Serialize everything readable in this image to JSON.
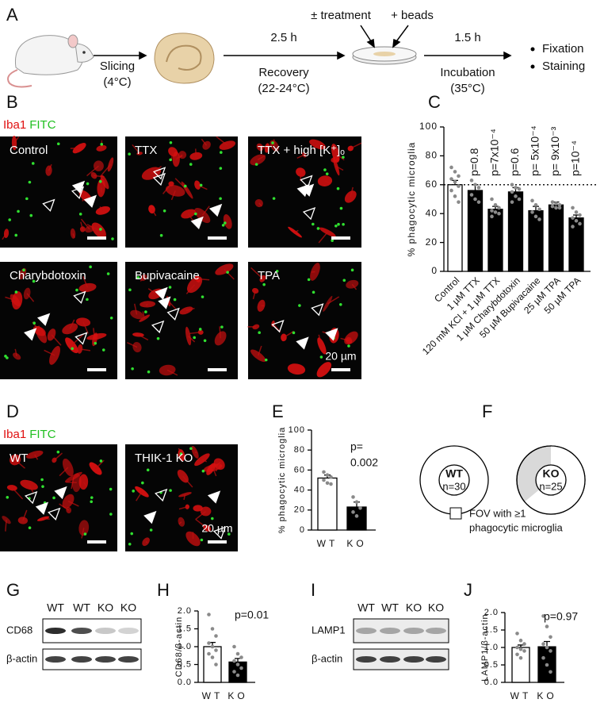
{
  "panel_a": {
    "label": "A",
    "slicing": [
      "Slicing",
      "(4°C)"
    ],
    "recovery_time": "2.5 h",
    "recovery": [
      "Recovery",
      "(22-24°C)"
    ],
    "treatment": "± treatment",
    "beads": "+ beads",
    "incubation_time": "1.5 h",
    "incubation": [
      "Incubation",
      "(35°C)"
    ],
    "endpoints": [
      "Fixation",
      "Staining"
    ]
  },
  "panel_b": {
    "label": "B",
    "stains": [
      "Iba1",
      "FITC"
    ],
    "images": [
      "Control",
      "TTX",
      "TTX + high [K⁺]ₒ",
      "Charybdotoxin",
      "Bupivacaine",
      "TPA"
    ],
    "scale_bar": "20 µm"
  },
  "panel_d": {
    "label": "D",
    "stains": [
      "Iba1",
      "FITC"
    ],
    "images": [
      "WT",
      "THIK-1 KO"
    ],
    "scale_bar": "20 µm"
  },
  "panel_g": {
    "label": "G",
    "lanes": [
      "WT",
      "WT",
      "KO",
      "KO"
    ],
    "rows": [
      "CD68",
      "β-actin"
    ]
  },
  "panel_i": {
    "label": "I",
    "lanes": [
      "WT",
      "WT",
      "KO",
      "KO"
    ],
    "rows": [
      "LAMP1",
      "β-actin"
    ]
  },
  "chart_data": [
    {
      "panel_label": "C",
      "type": "bar",
      "ylabel": "% phagocytic microglia",
      "categories": [
        "Control",
        "1 µM TTX",
        "120 mM KCl + 1 µM TTX",
        "1 µM Charybdotoxin",
        "50 µM Bupivacaine",
        "25 µM TPA",
        "50 µM TPA"
      ],
      "values": [
        60,
        56,
        43,
        55,
        42,
        46,
        37
      ],
      "errors": [
        3,
        4,
        2,
        3,
        3,
        2,
        2
      ],
      "points": [
        [
          72,
          69,
          66,
          64,
          62,
          59,
          56,
          52,
          48
        ],
        [
          63,
          60,
          58,
          53,
          50,
          48
        ],
        [
          50,
          46,
          44,
          42,
          41,
          40,
          38
        ],
        [
          60,
          58,
          57,
          55,
          52,
          50,
          48
        ],
        [
          49,
          46,
          43,
          41,
          38,
          36
        ],
        [
          48,
          47,
          46,
          45,
          44,
          44
        ],
        [
          44,
          41,
          39,
          37,
          35,
          33,
          31
        ]
      ],
      "colors": [
        "#ffffff",
        "#000000",
        "#000000",
        "#000000",
        "#000000",
        "#000000",
        "#000000"
      ],
      "point_color": "#8a8a8a",
      "p_labels": [
        null,
        "p=0.8",
        "p=7x10⁻⁴",
        "p=0.6",
        "p= 5x10⁻⁴",
        "p= 9x10⁻³",
        "p=10⁻⁴"
      ],
      "reference_line": 60,
      "ylim": [
        0,
        100
      ],
      "yticks": [
        0,
        20,
        40,
        60,
        80,
        100
      ]
    },
    {
      "panel_label": "E",
      "type": "bar",
      "ylabel": "% phagocytic microglia",
      "categories": [
        "WT",
        "KO"
      ],
      "values": [
        52,
        23
      ],
      "errors": [
        3,
        5
      ],
      "points": [
        [
          58,
          55,
          53,
          50,
          47,
          46
        ],
        [
          33,
          28,
          22,
          18,
          14
        ]
      ],
      "colors": [
        "#ffffff",
        "#000000"
      ],
      "point_color": "#8a8a8a",
      "p_text": [
        "p=",
        "0.002"
      ],
      "ylim": [
        0,
        100
      ],
      "yticks": [
        0,
        20,
        40,
        60,
        80,
        100
      ]
    },
    {
      "panel_label": "F",
      "type": "donut",
      "categories": [
        "WT",
        "KO"
      ],
      "n_labels": [
        "n=30",
        "n=25"
      ],
      "values": [
        100,
        64
      ],
      "color": "#ffffff",
      "other_color": "#d9d9d9",
      "legend_label": [
        "FOV with ≥1",
        "phagocytic microglia"
      ]
    },
    {
      "panel_label": "H",
      "type": "bar",
      "ylabel": "CD68/β-actin",
      "categories": [
        "WT",
        "KO"
      ],
      "values": [
        1.0,
        0.57
      ],
      "errors": [
        0.12,
        0.1
      ],
      "points": [
        [
          1.9,
          1.5,
          1.3,
          1.1,
          1.0,
          0.9,
          0.8,
          0.7,
          0.5
        ],
        [
          1.0,
          0.8,
          0.7,
          0.6,
          0.5,
          0.4,
          0.3,
          0.2
        ]
      ],
      "colors": [
        "#ffffff",
        "#000000"
      ],
      "point_color": "#8a8a8a",
      "p_text": [
        "p=0.01"
      ],
      "ylim": [
        0,
        2
      ],
      "yticks": [
        {
          "value": 0,
          "label": "0.0"
        },
        0.5,
        {
          "value": 1,
          "label": "1.0"
        },
        1.5,
        {
          "value": 2,
          "label": "2.0"
        }
      ]
    },
    {
      "panel_label": "J",
      "type": "bar",
      "ylabel": "LAMP1/β-actin",
      "categories": [
        "WT",
        "KO"
      ],
      "values": [
        1.0,
        1.02
      ],
      "errors": [
        0.07,
        0.15
      ],
      "points": [
        [
          1.4,
          1.2,
          1.1,
          1.0,
          0.95,
          0.9,
          0.8,
          0.7
        ],
        [
          1.9,
          1.6,
          1.3,
          1.1,
          1.0,
          0.9,
          0.7,
          0.5,
          0.3
        ]
      ],
      "colors": [
        "#ffffff",
        "#000000"
      ],
      "point_color": "#8a8a8a",
      "p_text": [
        "p=0.97"
      ],
      "ylim": [
        0,
        2
      ],
      "yticks": [
        {
          "value": 0,
          "label": "0.0"
        },
        0.5,
        {
          "value": 1,
          "label": "1.0"
        },
        1.5,
        {
          "value": 2,
          "label": "2.0"
        }
      ]
    }
  ]
}
